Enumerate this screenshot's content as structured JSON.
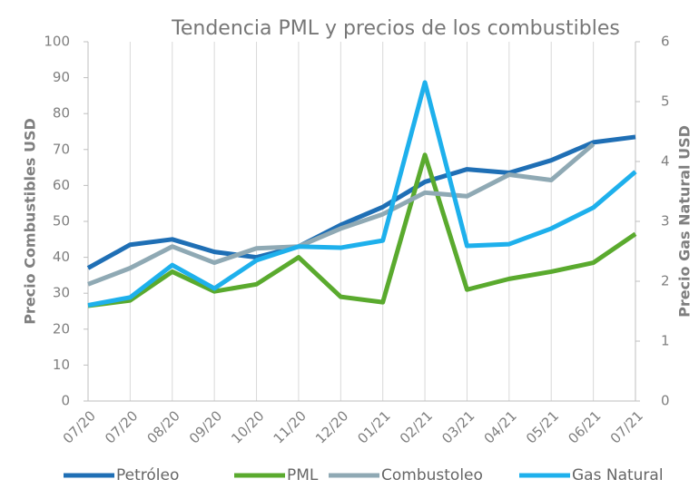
{
  "chart_data": {
    "type": "line",
    "title": "Tendencia PML y precios de los combustibles",
    "y_label": "Precio Combustibles USD",
    "y2_label": "Precio Gas Natural USD",
    "categories": [
      "07/20",
      "07/20",
      "08/20",
      "09/20",
      "10/20",
      "11/20",
      "12/20",
      "01/21",
      "02/21",
      "03/21",
      "04/21",
      "05/21",
      "06/21",
      "07/21"
    ],
    "series": [
      {
        "name": "Petróleo",
        "color": "#1f6fb5",
        "values": [
          37,
          43.5,
          45,
          41.5,
          40,
          43,
          49,
          54,
          61,
          64.5,
          63.5,
          67,
          72,
          73.5
        ]
      },
      {
        "name": "PML",
        "color": "#5aaa2e",
        "values": [
          26.5,
          28,
          36,
          30.5,
          32.5,
          40,
          29,
          27.5,
          68.5,
          31,
          34,
          36,
          38.5,
          46.5
        ]
      },
      {
        "name": "Combustoleo",
        "color": "#8fa9b4",
        "values": [
          32.5,
          37,
          43,
          38.5,
          42.5,
          43,
          48,
          52,
          58,
          57,
          63,
          61.5,
          71.5,
          null
        ]
      },
      {
        "name": "Gas Natural",
        "color": "#1eb0ec",
        "axis": "y2",
        "values": [
          1.6,
          1.73,
          2.27,
          1.88,
          2.35,
          2.58,
          2.56,
          2.68,
          5.32,
          2.59,
          2.62,
          2.88,
          3.23,
          3.83
        ]
      }
    ],
    "ylim": [
      0,
      100
    ],
    "yticks": [
      0,
      10,
      20,
      30,
      40,
      50,
      60,
      70,
      80,
      90,
      100
    ],
    "y2lim": [
      0,
      6
    ],
    "y2ticks": [
      0,
      1,
      2,
      3,
      4,
      5,
      6
    ],
    "grid": "x",
    "legend": "bottom"
  }
}
